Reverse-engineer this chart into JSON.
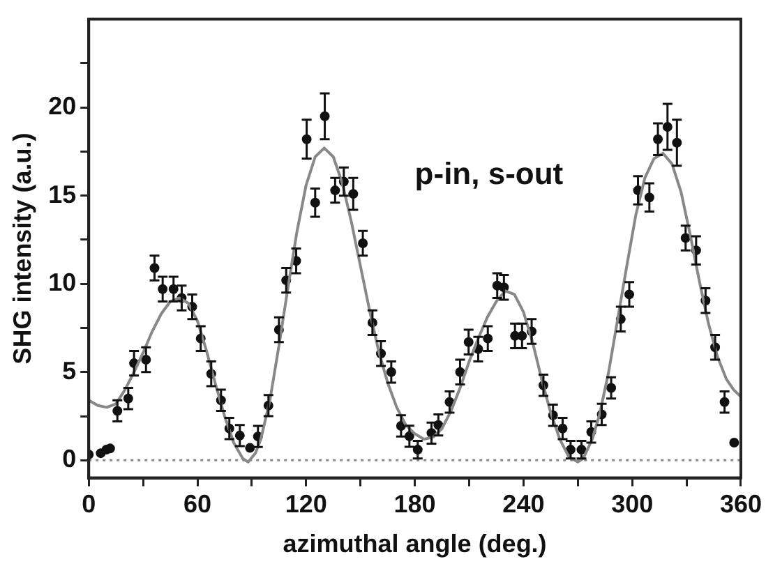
{
  "chart_data": {
    "type": "scatter",
    "xlabel": "azimuthal angle (deg.)",
    "ylabel": "SHG intensity (a.u.)",
    "annotations": [
      "p-in, s-out"
    ],
    "xlim": [
      0,
      360
    ],
    "xticks": [
      0,
      {
        "value": 30,
        "label": null
      },
      60,
      {
        "value": 90,
        "label": null
      },
      120,
      {
        "value": 150,
        "label": null
      },
      180,
      {
        "value": 210,
        "label": null
      },
      240,
      {
        "value": 270,
        "label": null
      },
      300,
      {
        "value": 330,
        "label": null
      },
      360
    ],
    "ylim": [
      -1,
      25
    ],
    "yticks": [
      0,
      {
        "value": 2.5,
        "label": null
      },
      5,
      {
        "value": 7.5,
        "label": null
      },
      10,
      {
        "value": 12.5,
        "label": null
      },
      15,
      {
        "value": 17.5,
        "label": null
      },
      20,
      {
        "value": 22.5,
        "label": null
      }
    ],
    "grid": false,
    "legend": false,
    "marker": "circle",
    "ref_lines": [
      {
        "axis": "y",
        "value": 0,
        "color": "#888888",
        "line_style": "dotted"
      }
    ],
    "series": [
      {
        "color": "#111111",
        "x": [
          0,
          6.6,
          9.7,
          11.8,
          15.8,
          21.8,
          25,
          31.6,
          36.3,
          40.8,
          46.8,
          51.3,
          57.1,
          61.8,
          67.6,
          73,
          77.6,
          83.4,
          89,
          93.4,
          99.2,
          105,
          109,
          114.5,
          120.3,
          125,
          130.3,
          136,
          140.8,
          146,
          151.3,
          156.6,
          161.3,
          167,
          172.4,
          177,
          181.6,
          189.2,
          193,
          199.2,
          205,
          209.7,
          215,
          220.3,
          225.5,
          229.2,
          235.3,
          239.2,
          244.5,
          251,
          256.3,
          261.6,
          266,
          272,
          277.4,
          283.2,
          288.4,
          293.7,
          298.4,
          303.2,
          309.5,
          314.2,
          319.5,
          324.7,
          329.5,
          335.3,
          340.5,
          345.8,
          351,
          356.3
        ],
        "values": [
          0.33,
          0.4,
          0.6,
          0.67,
          2.8,
          3.5,
          5.5,
          5.7,
          10.9,
          9.7,
          9.7,
          9.2,
          8.7,
          6.9,
          4.9,
          3.4,
          1.8,
          1.4,
          0.7,
          1.35,
          3.1,
          7.4,
          10.2,
          11.3,
          18.2,
          14.6,
          19.5,
          15.3,
          15.8,
          15.1,
          12.3,
          7.8,
          6.05,
          5,
          1.95,
          1.36,
          0.6,
          1.54,
          2,
          3.3,
          5,
          6.7,
          6.3,
          6.9,
          9.9,
          9.8,
          7.05,
          7.05,
          7.3,
          4.25,
          2.55,
          1.8,
          0.6,
          0.6,
          1.6,
          2.6,
          4.1,
          8,
          9.4,
          15.3,
          14.9,
          18.2,
          18.9,
          18,
          12.6,
          11.9,
          9.05,
          6.4,
          3.3,
          1
        ],
        "errors": [
          null,
          null,
          null,
          null,
          0.6,
          0.6,
          0.7,
          0.7,
          0.7,
          0.7,
          0.7,
          0.7,
          0.7,
          0.7,
          0.7,
          0.6,
          0.6,
          0.6,
          null,
          0.6,
          0.6,
          0.7,
          0.7,
          0.7,
          1.1,
          0.8,
          1.3,
          0.7,
          0.8,
          0.9,
          0.7,
          0.7,
          0.7,
          0.6,
          0.6,
          0.6,
          0.5,
          0.6,
          0.6,
          0.6,
          0.7,
          0.7,
          0.7,
          0.7,
          0.7,
          0.7,
          0.7,
          0.7,
          0.7,
          0.6,
          0.6,
          0.6,
          0.5,
          0.5,
          0.6,
          0.6,
          0.6,
          0.7,
          0.7,
          0.8,
          0.8,
          0.9,
          1.3,
          1.3,
          0.7,
          0.8,
          0.7,
          0.7,
          0.6,
          null
        ]
      },
      {
        "type": "line",
        "color": "#888888",
        "marker": "none",
        "x": [
          0,
          5,
          10,
          15,
          20,
          25,
          30,
          35,
          40,
          45,
          50,
          55,
          60,
          65,
          70,
          75,
          80,
          85,
          88,
          92,
          95,
          100,
          105,
          110,
          115,
          120,
          125,
          130,
          135,
          140,
          145,
          150,
          155,
          160,
          165,
          170,
          175,
          180,
          185,
          190,
          195,
          200,
          205,
          210,
          215,
          220,
          225,
          230,
          235,
          240,
          245,
          250,
          255,
          260,
          265,
          270,
          273,
          278,
          282,
          287,
          292,
          297,
          302,
          307,
          312,
          317,
          322,
          327,
          332,
          337,
          342,
          347,
          352,
          356,
          360
        ],
        "values": [
          3.4,
          3.1,
          3.0,
          3.2,
          4.0,
          5.0,
          6.1,
          7.3,
          8.3,
          9.0,
          9.2,
          8.9,
          7.9,
          6.2,
          4.3,
          2.5,
          1.0,
          0.1,
          -0.1,
          0.4,
          1.2,
          3.4,
          6.5,
          9.8,
          13.0,
          15.6,
          17.2,
          17.7,
          17.2,
          15.7,
          13.5,
          11.0,
          8.5,
          6.2,
          4.4,
          3.0,
          2.0,
          1.5,
          1.2,
          1.3,
          1.8,
          2.8,
          4.1,
          5.6,
          6.9,
          8.1,
          9.0,
          9.6,
          9.4,
          8.4,
          6.7,
          4.6,
          2.7,
          1.2,
          0.2,
          -0.1,
          0.1,
          1.2,
          2.6,
          5.0,
          8.0,
          11.0,
          13.9,
          16.0,
          17.1,
          17.4,
          16.8,
          15.2,
          12.8,
          10.2,
          7.8,
          5.9,
          4.6,
          4.0,
          3.6
        ]
      }
    ]
  }
}
